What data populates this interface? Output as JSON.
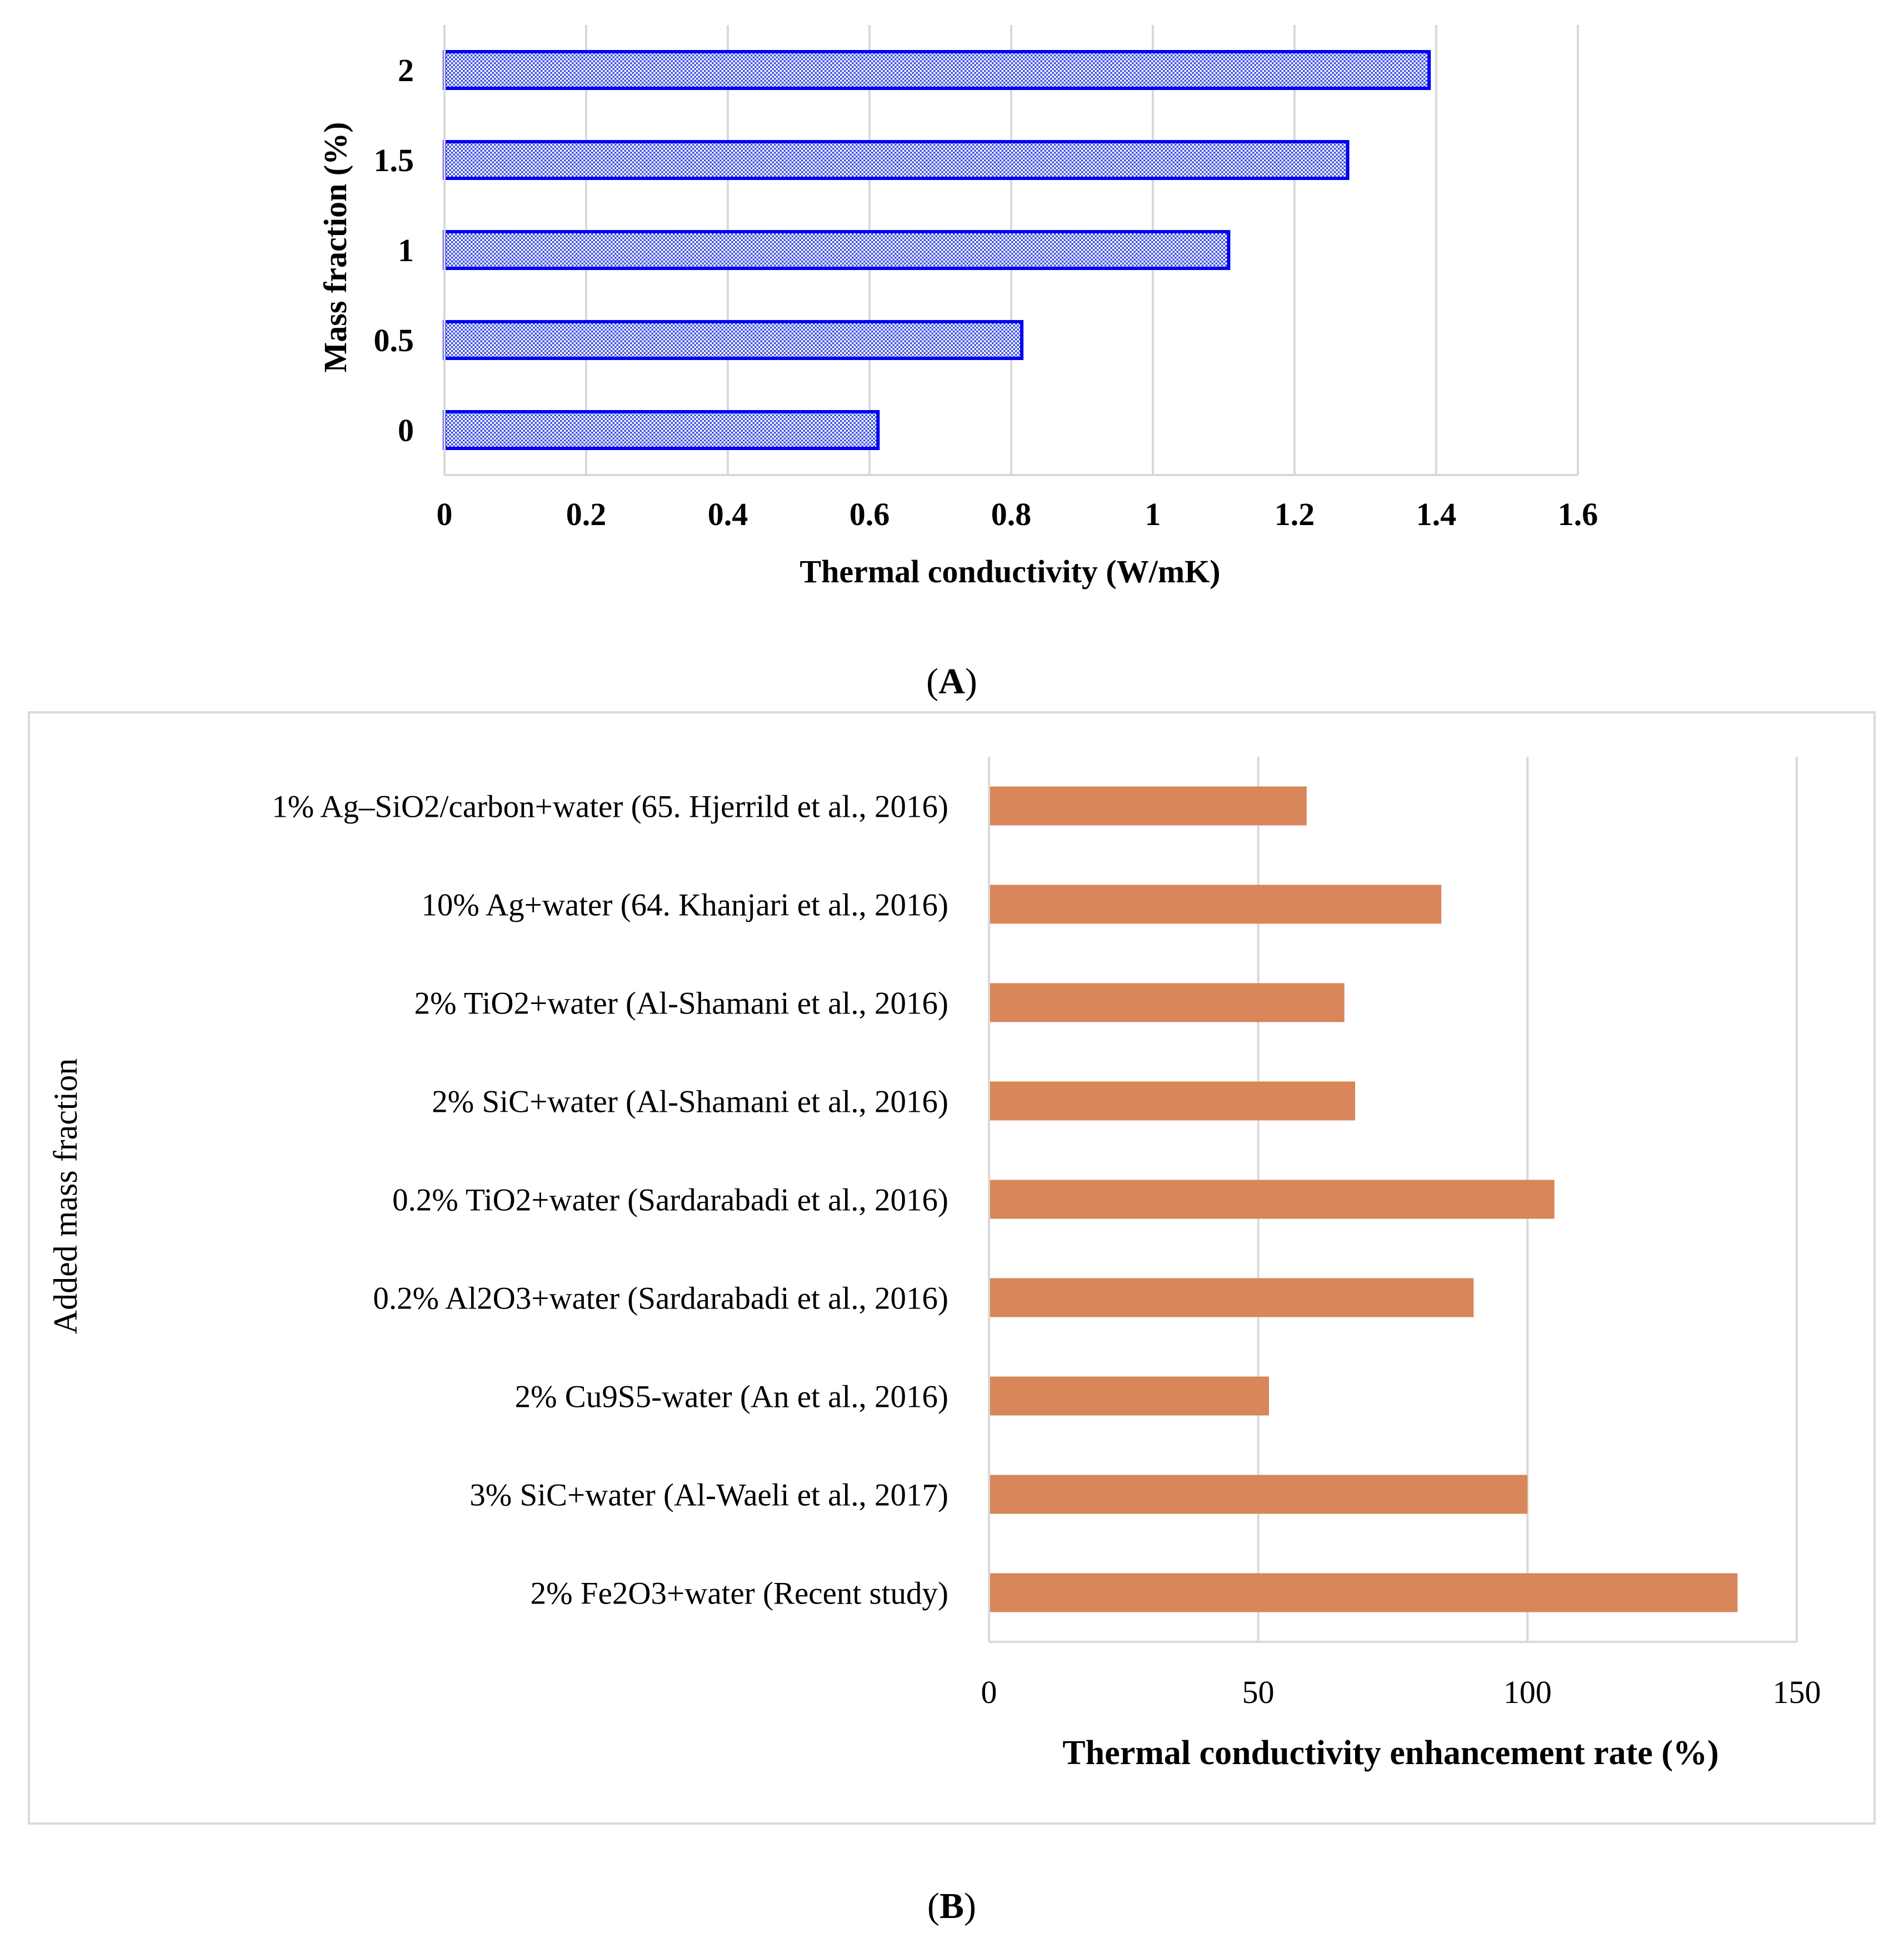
{
  "chart_data": [
    {
      "type": "bar",
      "orientation": "horizontal",
      "panel_label": "A",
      "title": "",
      "categories": [
        "0",
        "0.5",
        "1",
        "1.5",
        "2"
      ],
      "values": [
        0.612,
        0.815,
        1.107,
        1.275,
        1.39
      ],
      "xlabel": "Thermal conductivity (W/mK)",
      "ylabel": "Mass fraction (%)",
      "xlim": [
        0,
        1.6
      ],
      "xticks": [
        "0",
        "0.2",
        "0.4",
        "0.6",
        "0.8",
        "1",
        "1.2",
        "1.4",
        "1.6"
      ],
      "grid": true,
      "bar_style": "crosshatch",
      "colors": {
        "bar_fill": "#a9b9f5",
        "bar_stroke": "#0000ee",
        "grid": "#d9d9d9"
      }
    },
    {
      "type": "bar",
      "orientation": "horizontal",
      "panel_label": "B",
      "title": "",
      "categories": [
        "1% Ag–SiO2/carbon+water (65. Hjerrild et al., 2016)",
        "10% Ag+water (64. Khanjari et al., 2016)",
        "2% TiO2+water (Al-Shamani et al., 2016)",
        "2% SiC+water (Al-Shamani et al., 2016)",
        "0.2% TiO2+water (Sardarabadi et al., 2016)",
        "0.2% Al2O3+water (Sardarabadi et al., 2016)",
        "2% Cu9S5-water (An et al., 2016)",
        "3% SiC+water (Al-Waeli et al., 2017)",
        "2% Fe2O3+water (Recent study)"
      ],
      "values": [
        59,
        84,
        66,
        68,
        105,
        90,
        52,
        100,
        139
      ],
      "xlabel": "Thermal conductivity enhancement rate (%)",
      "ylabel": "Added mass fraction",
      "xlim": [
        0,
        150
      ],
      "xticks": [
        "0",
        "50",
        "100",
        "150"
      ],
      "grid": true,
      "colors": {
        "bar_fill": "#d8865a",
        "grid": "#d9d9d9",
        "frame": "#d9d9d9"
      }
    }
  ],
  "captions": {
    "a": "A",
    "b": "B"
  }
}
